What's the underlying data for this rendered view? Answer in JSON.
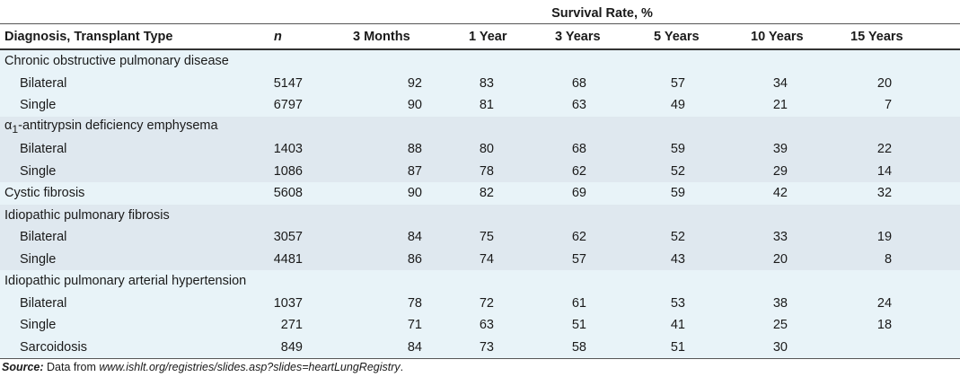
{
  "table": {
    "header_group": "Survival Rate, %",
    "columns": [
      "Diagnosis, Transplant Type",
      "n",
      "3 Months",
      "1 Year",
      "3 Years",
      "5 Years",
      "10 Years",
      "15 Years"
    ],
    "groups": [
      {
        "label": "Chronic obstructive pulmonary disease",
        "rows": [
          {
            "label": "Bilateral",
            "values": [
              5147,
              92,
              83,
              68,
              57,
              34,
              20
            ]
          },
          {
            "label": "Single",
            "values": [
              6797,
              90,
              81,
              63,
              49,
              21,
              7
            ]
          }
        ]
      },
      {
        "label_parts": [
          "α",
          "1",
          "-antitrypsin deficiency emphysema"
        ],
        "rows": [
          {
            "label": "Bilateral",
            "values": [
              1403,
              88,
              80,
              68,
              59,
              39,
              22
            ]
          },
          {
            "label": "Single",
            "values": [
              1086,
              87,
              78,
              62,
              52,
              29,
              14
            ]
          }
        ]
      },
      {
        "label": "Cystic fibrosis",
        "values": [
          5608,
          90,
          82,
          69,
          59,
          42,
          32
        ]
      },
      {
        "label": "Idiopathic pulmonary fibrosis",
        "rows": [
          {
            "label": "Bilateral",
            "values": [
              3057,
              84,
              75,
              62,
              52,
              33,
              19
            ]
          },
          {
            "label": "Single",
            "values": [
              4481,
              86,
              74,
              57,
              43,
              20,
              8
            ]
          }
        ]
      },
      {
        "label": "Idiopathic pulmonary arterial hypertension",
        "rows": [
          {
            "label": "Bilateral",
            "values": [
              1037,
              78,
              72,
              61,
              53,
              38,
              24
            ]
          },
          {
            "label": "Single",
            "values": [
              271,
              71,
              63,
              51,
              41,
              25,
              18
            ]
          },
          {
            "label": "Sarcoidosis",
            "values": [
              849,
              84,
              73,
              58,
              51,
              30,
              null
            ]
          }
        ]
      }
    ]
  },
  "source": {
    "label": "Source:",
    "prefix": "Data from",
    "url": "www.ishlt.org/registries/slides.asp?slides=heartLungRegistry",
    "suffix": "."
  }
}
